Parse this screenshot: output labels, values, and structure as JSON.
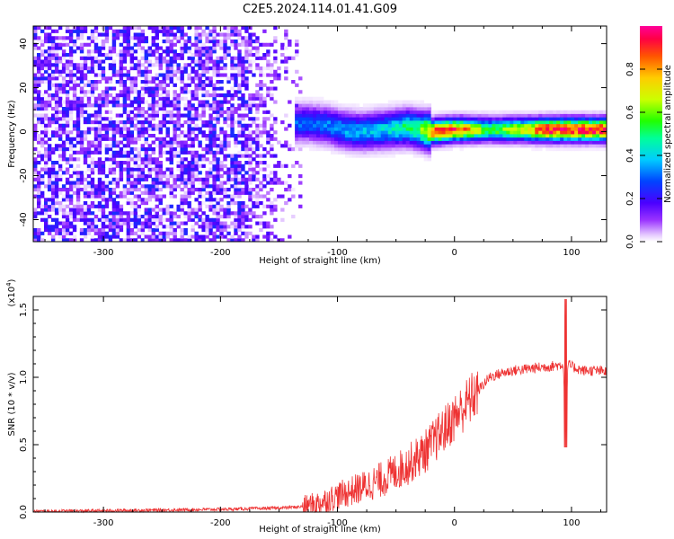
{
  "title": "C2E5.2024.114.01.41.G09",
  "chart_data": [
    {
      "type": "heatmap",
      "title": "",
      "xlabel": "Height of straight line (km)",
      "ylabel": "Frequency (Hz)",
      "xlim": [
        -360,
        130
      ],
      "ylim": [
        -50,
        48
      ],
      "xticks": [
        -300,
        -200,
        -100,
        0,
        100
      ],
      "yticks": [
        -40,
        -20,
        0,
        20,
        40
      ],
      "colorbar": {
        "label": "Normalized spectral amplitude",
        "range": [
          0,
          1
        ],
        "ticks": [
          "0.0",
          "0.2",
          "0.4",
          "0.6",
          "0.8"
        ]
      },
      "ridge_frequency_hz": [
        {
          "x": -125,
          "y": 4
        },
        {
          "x": -110,
          "y": 3
        },
        {
          "x": -95,
          "y": 1
        },
        {
          "x": -80,
          "y": 0
        },
        {
          "x": -60,
          "y": 1
        },
        {
          "x": -40,
          "y": 2
        },
        {
          "x": -20,
          "y": 0
        },
        {
          "x": 0,
          "y": 1
        },
        {
          "x": 30,
          "y": 1
        },
        {
          "x": 60,
          "y": 1
        },
        {
          "x": 90,
          "y": 1
        },
        {
          "x": 100,
          "y": 1
        },
        {
          "x": 130,
          "y": 1
        }
      ],
      "ridge_amplitude": [
        {
          "x": -125,
          "y": 0.3
        },
        {
          "x": -100,
          "y": 0.35
        },
        {
          "x": -60,
          "y": 0.4
        },
        {
          "x": -30,
          "y": 0.55
        },
        {
          "x": -15,
          "y": 0.95
        },
        {
          "x": 0,
          "y": 0.9
        },
        {
          "x": 30,
          "y": 0.55
        },
        {
          "x": 60,
          "y": 0.7
        },
        {
          "x": 80,
          "y": 0.95
        },
        {
          "x": 100,
          "y": 0.95
        },
        {
          "x": 120,
          "y": 0.95
        },
        {
          "x": 130,
          "y": 0.95
        }
      ],
      "noise_region_x": [
        -360,
        -130
      ],
      "noise_amplitude_range": [
        0.0,
        0.25
      ]
    },
    {
      "type": "line",
      "title": "",
      "xlabel": "Height of straight line (km)",
      "ylabel": "SNR (10 * v/v)",
      "yunit": "(x10^4)",
      "xlim": [
        -360,
        130
      ],
      "ylim": [
        0,
        1.6
      ],
      "xticks": [
        -300,
        -200,
        -100,
        0,
        100
      ],
      "yticks": [
        "0.0",
        "0.5",
        "1.0",
        "1.5"
      ],
      "series": [
        {
          "name": "",
          "color": "#ee3333",
          "x": [
            -360,
            -300,
            -250,
            -200,
            -150,
            -130,
            -115,
            -100,
            -80,
            -60,
            -40,
            -25,
            -10,
            0,
            10,
            20,
            30,
            40,
            50,
            60,
            70,
            80,
            90,
            93,
            95,
            97,
            100,
            110,
            120,
            130
          ],
          "y": [
            0.005,
            0.01,
            0.015,
            0.02,
            0.03,
            0.04,
            0.07,
            0.12,
            0.18,
            0.25,
            0.35,
            0.45,
            0.6,
            0.7,
            0.8,
            0.9,
            1.0,
            1.03,
            1.05,
            1.06,
            1.07,
            1.08,
            1.09,
            1.1,
            0.5,
            1.1,
            1.08,
            1.05,
            1.05,
            1.04
          ]
        }
      ]
    }
  ]
}
